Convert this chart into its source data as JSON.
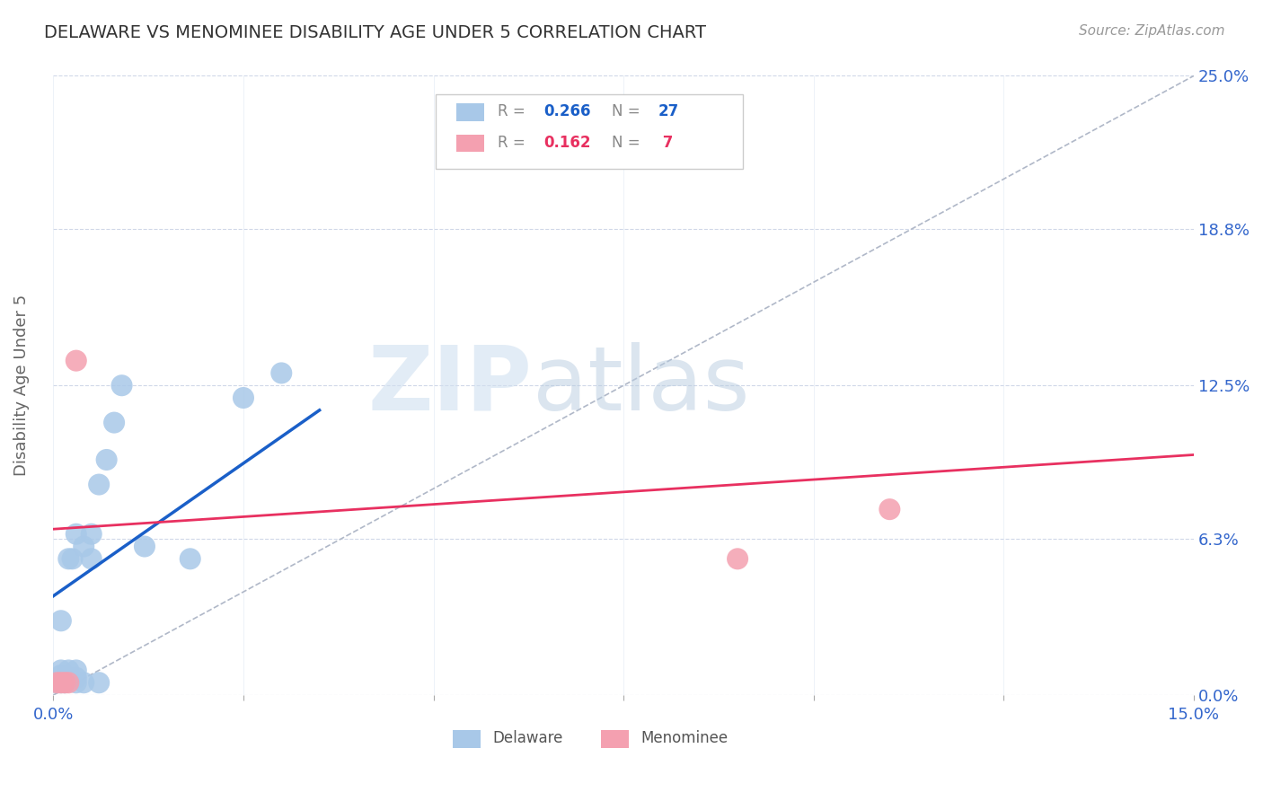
{
  "title": "DELAWARE VS MENOMINEE DISABILITY AGE UNDER 5 CORRELATION CHART",
  "source": "Source: ZipAtlas.com",
  "ylabel_label": "Disability Age Under 5",
  "xlim": [
    0.0,
    0.15
  ],
  "ylim": [
    0.0,
    0.25
  ],
  "xticks": [
    0.0,
    0.025,
    0.05,
    0.075,
    0.1,
    0.125,
    0.15
  ],
  "xtick_labels": [
    "0.0%",
    "",
    "",
    "",
    "",
    "",
    "15.0%"
  ],
  "ytick_labels_right": [
    "25.0%",
    "18.8%",
    "12.5%",
    "6.3%",
    "0.0%"
  ],
  "yticks_right": [
    0.25,
    0.188,
    0.125,
    0.063,
    0.0
  ],
  "delaware_R": 0.266,
  "delaware_N": 27,
  "menominee_R": 0.162,
  "menominee_N": 7,
  "delaware_color": "#a8c8e8",
  "menominee_color": "#f4a0b0",
  "delaware_line_color": "#1a5fc8",
  "menominee_line_color": "#e83060",
  "ref_line_color": "#b0b8c8",
  "watermark_zip": "ZIP",
  "watermark_atlas": "atlas",
  "delaware_x": [
    0.0005,
    0.001,
    0.001,
    0.001,
    0.001,
    0.0015,
    0.002,
    0.002,
    0.002,
    0.0025,
    0.003,
    0.003,
    0.003,
    0.003,
    0.004,
    0.004,
    0.005,
    0.005,
    0.006,
    0.006,
    0.007,
    0.008,
    0.009,
    0.012,
    0.018,
    0.025,
    0.03
  ],
  "delaware_y": [
    0.005,
    0.005,
    0.008,
    0.01,
    0.03,
    0.005,
    0.007,
    0.01,
    0.055,
    0.055,
    0.005,
    0.007,
    0.01,
    0.065,
    0.005,
    0.06,
    0.055,
    0.065,
    0.005,
    0.085,
    0.095,
    0.11,
    0.125,
    0.06,
    0.055,
    0.12,
    0.13
  ],
  "menominee_x": [
    0.0005,
    0.001,
    0.0015,
    0.002,
    0.003,
    0.09,
    0.11
  ],
  "menominee_y": [
    0.005,
    0.005,
    0.005,
    0.005,
    0.135,
    0.055,
    0.075
  ],
  "delaware_line_x0": 0.0,
  "delaware_line_y0": 0.04,
  "delaware_line_x1": 0.035,
  "delaware_line_y1": 0.115,
  "menominee_line_x0": 0.0,
  "menominee_line_y0": 0.067,
  "menominee_line_x1": 0.15,
  "menominee_line_y1": 0.097
}
